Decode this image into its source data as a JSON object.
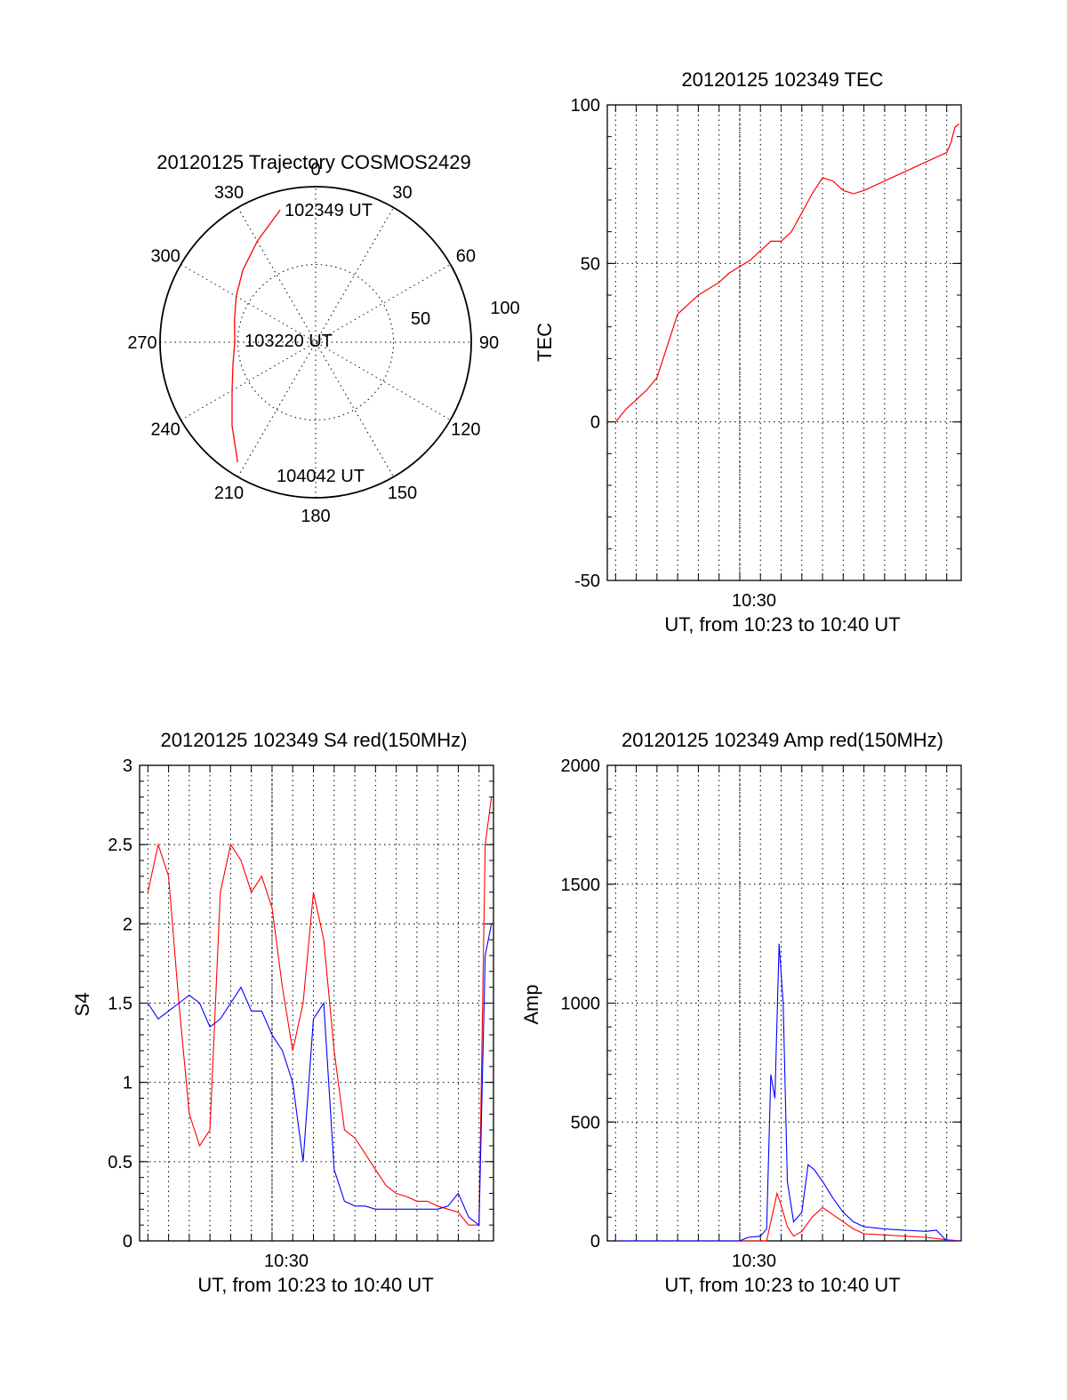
{
  "chart_data": [
    {
      "type": "polar",
      "title": "20120125 Trajectory COSMOS2429",
      "angle_ticks": [
        "0",
        "30",
        "60",
        "90",
        "120",
        "150",
        "180",
        "210",
        "240",
        "270",
        "300",
        "330"
      ],
      "radius_max": 100,
      "radius_ticks": [
        "50",
        "100"
      ],
      "trajectory": {
        "color": "#ff0000",
        "points": [
          {
            "az": 345,
            "r": 88
          },
          {
            "az": 330,
            "r": 75
          },
          {
            "az": 315,
            "r": 66
          },
          {
            "az": 300,
            "r": 59
          },
          {
            "az": 285,
            "r": 54
          },
          {
            "az": 270,
            "r": 52
          },
          {
            "az": 255,
            "r": 55
          },
          {
            "az": 240,
            "r": 62
          },
          {
            "az": 225,
            "r": 76
          },
          {
            "az": 213,
            "r": 92
          }
        ],
        "labels": [
          "102349 UT",
          "103220 UT",
          "104042 UT"
        ]
      }
    },
    {
      "type": "line",
      "title": "20120125 102349 TEC",
      "xlabel": "UT, from 10:23 to 10:40 UT",
      "ylabel": "TEC",
      "xlim_min": [
        23.6,
        40.7
      ],
      "ylim": [
        -50,
        100
      ],
      "y_ticks": [
        "-50",
        "0",
        "50",
        "100"
      ],
      "x_tick_labels": [
        {
          "x": 30,
          "label": "10:30"
        }
      ],
      "series": [
        {
          "color": "#ff0000",
          "x": [
            24.0,
            24.5,
            25.0,
            25.5,
            26.0,
            26.5,
            27.0,
            27.5,
            28.0,
            28.5,
            29.0,
            29.5,
            30.0,
            30.5,
            31.0,
            31.5,
            32.0,
            32.5,
            33.0,
            33.5,
            34.0,
            34.5,
            35.0,
            35.5,
            36.0,
            37.0,
            38.0,
            39.0,
            40.0,
            40.2,
            40.4,
            40.6
          ],
          "y": [
            0,
            4,
            7,
            10,
            14,
            24,
            34,
            37,
            40,
            42,
            44,
            47,
            49,
            51,
            54,
            57,
            57,
            60,
            66,
            72,
            77,
            76,
            73,
            72,
            73,
            76,
            79,
            82,
            85,
            88,
            93,
            94
          ]
        }
      ]
    },
    {
      "type": "line",
      "title": "20120125 102349 S4 red(150MHz)",
      "xlabel": "UT, from 10:23 to 10:40 UT",
      "ylabel": "S4",
      "xlim_min": [
        23.6,
        40.7
      ],
      "ylim": [
        0,
        3
      ],
      "y_ticks": [
        "0",
        "0.5",
        "1",
        "1.5",
        "2",
        "2.5",
        "3"
      ],
      "x_tick_labels": [
        {
          "x": 30,
          "label": "10:30"
        }
      ],
      "series": [
        {
          "color": "#ff0000",
          "x": [
            24.0,
            24.5,
            25.0,
            25.5,
            26.0,
            26.5,
            27.0,
            27.5,
            28.0,
            28.5,
            29.0,
            29.5,
            30.0,
            30.5,
            31.0,
            31.5,
            32.0,
            32.5,
            33.0,
            33.5,
            34.0,
            34.5,
            35.0,
            35.5,
            36.0,
            36.5,
            37.0,
            37.5,
            38.0,
            38.5,
            39.0,
            39.5,
            40.0,
            40.3,
            40.6
          ],
          "y": [
            2.2,
            2.5,
            2.3,
            1.5,
            0.8,
            0.6,
            0.7,
            2.2,
            2.5,
            2.4,
            2.2,
            2.3,
            2.1,
            1.6,
            1.2,
            1.5,
            2.2,
            1.9,
            1.2,
            0.7,
            0.65,
            0.55,
            0.45,
            0.35,
            0.3,
            0.28,
            0.25,
            0.25,
            0.22,
            0.2,
            0.18,
            0.1,
            0.1,
            2.5,
            2.8
          ]
        },
        {
          "color": "#0000ff",
          "x": [
            24.0,
            24.5,
            25.0,
            25.5,
            26.0,
            26.5,
            27.0,
            27.5,
            28.0,
            28.5,
            29.0,
            29.5,
            30.0,
            30.5,
            31.0,
            31.5,
            32.0,
            32.5,
            33.0,
            33.5,
            34.0,
            34.5,
            35.0,
            35.5,
            36.0,
            36.5,
            37.0,
            37.5,
            38.0,
            38.5,
            39.0,
            39.5,
            40.0,
            40.3,
            40.6
          ],
          "y": [
            1.5,
            1.4,
            1.45,
            1.5,
            1.55,
            1.5,
            1.35,
            1.4,
            1.5,
            1.6,
            1.45,
            1.45,
            1.3,
            1.2,
            1.0,
            0.5,
            1.4,
            1.5,
            0.45,
            0.25,
            0.22,
            0.22,
            0.2,
            0.2,
            0.2,
            0.2,
            0.2,
            0.2,
            0.2,
            0.22,
            0.3,
            0.15,
            0.1,
            1.8,
            2.0
          ]
        }
      ]
    },
    {
      "type": "line",
      "title": "20120125 102349 Amp red(150MHz)",
      "xlabel": "UT, from 10:23 to 10:40 UT",
      "ylabel": "Amp",
      "xlim_min": [
        23.6,
        40.7
      ],
      "ylim": [
        0,
        2000
      ],
      "y_ticks": [
        "0",
        "500",
        "1000",
        "1500",
        "2000"
      ],
      "x_tick_labels": [
        {
          "x": 30,
          "label": "10:30"
        }
      ],
      "series": [
        {
          "color": "#ff0000",
          "x": [
            24.0,
            28.0,
            30.0,
            31.3,
            31.5,
            31.8,
            32.0,
            32.3,
            32.6,
            33.0,
            33.5,
            34.0,
            34.5,
            35.0,
            35.5,
            36.0,
            37.0,
            38.0,
            39.0,
            40.0,
            40.7
          ],
          "y": [
            0,
            0,
            0,
            0,
            80,
            200,
            150,
            60,
            20,
            40,
            100,
            140,
            110,
            80,
            50,
            30,
            25,
            20,
            15,
            5,
            0
          ]
        },
        {
          "color": "#0000ff",
          "x": [
            24.0,
            27.0,
            30.0,
            30.4,
            31.0,
            31.3,
            31.5,
            31.7,
            31.9,
            32.1,
            32.3,
            32.6,
            33.0,
            33.3,
            33.6,
            34.0,
            34.5,
            35.0,
            35.5,
            36.0,
            37.0,
            38.0,
            39.0,
            39.5,
            40.0,
            40.7
          ],
          "y": [
            0,
            0,
            0,
            15,
            20,
            50,
            700,
            600,
            1250,
            1000,
            250,
            80,
            120,
            320,
            300,
            250,
            180,
            120,
            80,
            60,
            50,
            45,
            40,
            45,
            0,
            0
          ]
        }
      ]
    }
  ]
}
